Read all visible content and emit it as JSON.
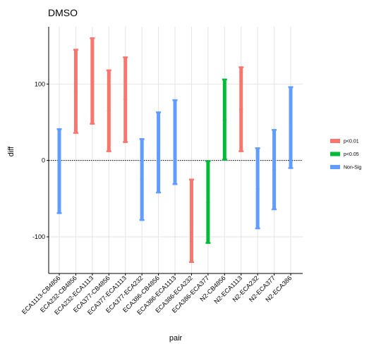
{
  "chart_data": {
    "type": "errorbar",
    "title": "DMSO",
    "xlabel": "pair",
    "ylabel": "diff",
    "ylim": [
      -148,
      175
    ],
    "yticks": [
      -100,
      0,
      100
    ],
    "grid": true,
    "zero_line": true,
    "legend": {
      "position": "right",
      "entries": [
        {
          "label": "p<0.01",
          "color": "#F8766D"
        },
        {
          "label": "p<0.05",
          "color": "#00BA38"
        },
        {
          "label": "Non-Sig",
          "color": "#619CFF"
        }
      ]
    },
    "categories": [
      "ECA1113-CB4856",
      "ECA232-CB4856",
      "ECA232-ECA1113",
      "ECA377-CB4856",
      "ECA377-ECA1113",
      "ECA377-ECA232",
      "ECA386-CB4856",
      "ECA386-ECA1113",
      "ECA386-ECA232",
      "ECA386-ECA377",
      "N2-CB4856",
      "N2-ECA1113",
      "N2-ECA232",
      "N2-ECA377",
      "N2-ECA386"
    ],
    "series": [
      {
        "pair": "ECA1113-CB4856",
        "diff": -14,
        "lwr": -69,
        "upr": 41,
        "group": "Non-Sig"
      },
      {
        "pair": "ECA232-CB4856",
        "diff": 90,
        "lwr": 36,
        "upr": 145,
        "group": "p<0.01"
      },
      {
        "pair": "ECA232-ECA1113",
        "diff": 104,
        "lwr": 48,
        "upr": 160,
        "group": "p<0.01"
      },
      {
        "pair": "ECA377-CB4856",
        "diff": 65,
        "lwr": 12,
        "upr": 118,
        "group": "p<0.01"
      },
      {
        "pair": "ECA377-ECA1113",
        "diff": 80,
        "lwr": 24,
        "upr": 135,
        "group": "p<0.01"
      },
      {
        "pair": "ECA377-ECA232",
        "diff": -25,
        "lwr": -78,
        "upr": 28,
        "group": "Non-Sig"
      },
      {
        "pair": "ECA386-CB4856",
        "diff": 10,
        "lwr": -42,
        "upr": 63,
        "group": "Non-Sig"
      },
      {
        "pair": "ECA386-ECA1113",
        "diff": 24,
        "lwr": -31,
        "upr": 79,
        "group": "Non-Sig"
      },
      {
        "pair": "ECA386-ECA232",
        "diff": -80,
        "lwr": -133,
        "upr": -25,
        "group": "p<0.01"
      },
      {
        "pair": "ECA386-ECA377",
        "diff": -55,
        "lwr": -108,
        "upr": -1,
        "group": "p<0.05"
      },
      {
        "pair": "N2-CB4856",
        "diff": 53,
        "lwr": 1,
        "upr": 106,
        "group": "p<0.05"
      },
      {
        "pair": "N2-ECA1113",
        "diff": 67,
        "lwr": 12,
        "upr": 122,
        "group": "p<0.01"
      },
      {
        "pair": "N2-ECA232",
        "diff": -37,
        "lwr": -89,
        "upr": 16,
        "group": "Non-Sig"
      },
      {
        "pair": "N2-ECA377",
        "diff": -12,
        "lwr": -64,
        "upr": 40,
        "group": "Non-Sig"
      },
      {
        "pair": "N2-ECA386",
        "diff": 43,
        "lwr": -10,
        "upr": 96,
        "group": "Non-Sig"
      }
    ]
  }
}
